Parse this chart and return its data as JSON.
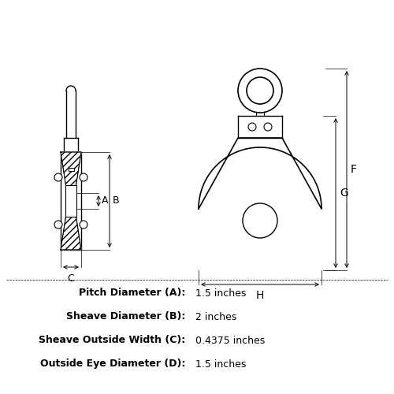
{
  "bg_color": "#ffffff",
  "line_color": "#000000",
  "spec_labels": [
    "Pitch Diameter (A):",
    "Sheave Diameter (B):",
    "Sheave Outside Width (C):",
    "Outside Eye Diameter (D):"
  ],
  "spec_values": [
    "1.5 inches",
    "2 inches",
    "0.4375 inches",
    "1.5 inches"
  ],
  "fig_width": 5.0,
  "fig_height": 5.0,
  "dpi": 100
}
